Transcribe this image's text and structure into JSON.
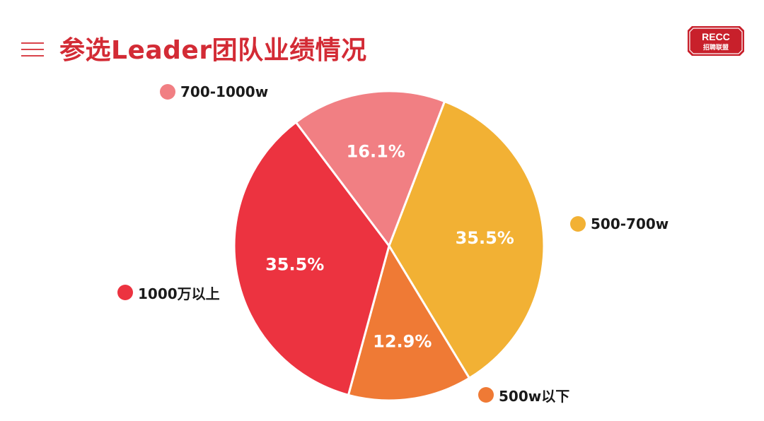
{
  "header": {
    "title": "参选Leader团队业绩情况"
  },
  "logo": {
    "line1": "RECC",
    "line2": "招聘联盟"
  },
  "chart_data": {
    "type": "pie",
    "title": "参选Leader团队业绩情况",
    "slices": [
      {
        "label": "500-700w",
        "value": 35.5,
        "display": "35.5%",
        "color": "#f2b134"
      },
      {
        "label": "500w以下",
        "value": 12.9,
        "display": "12.9%",
        "color": "#ef7a35"
      },
      {
        "label": "1000万以上",
        "value": 35.5,
        "display": "35.5%",
        "color": "#ec3340"
      },
      {
        "label": "700-1000w",
        "value": 16.1,
        "display": "16.1%",
        "color": "#f17f83"
      }
    ],
    "start_angle_deg": 21,
    "direction": "clockwise",
    "legend_placement": "around the pie, next to each slice"
  },
  "colors": {
    "title": "#d32b35",
    "separator": "#ffffff"
  }
}
